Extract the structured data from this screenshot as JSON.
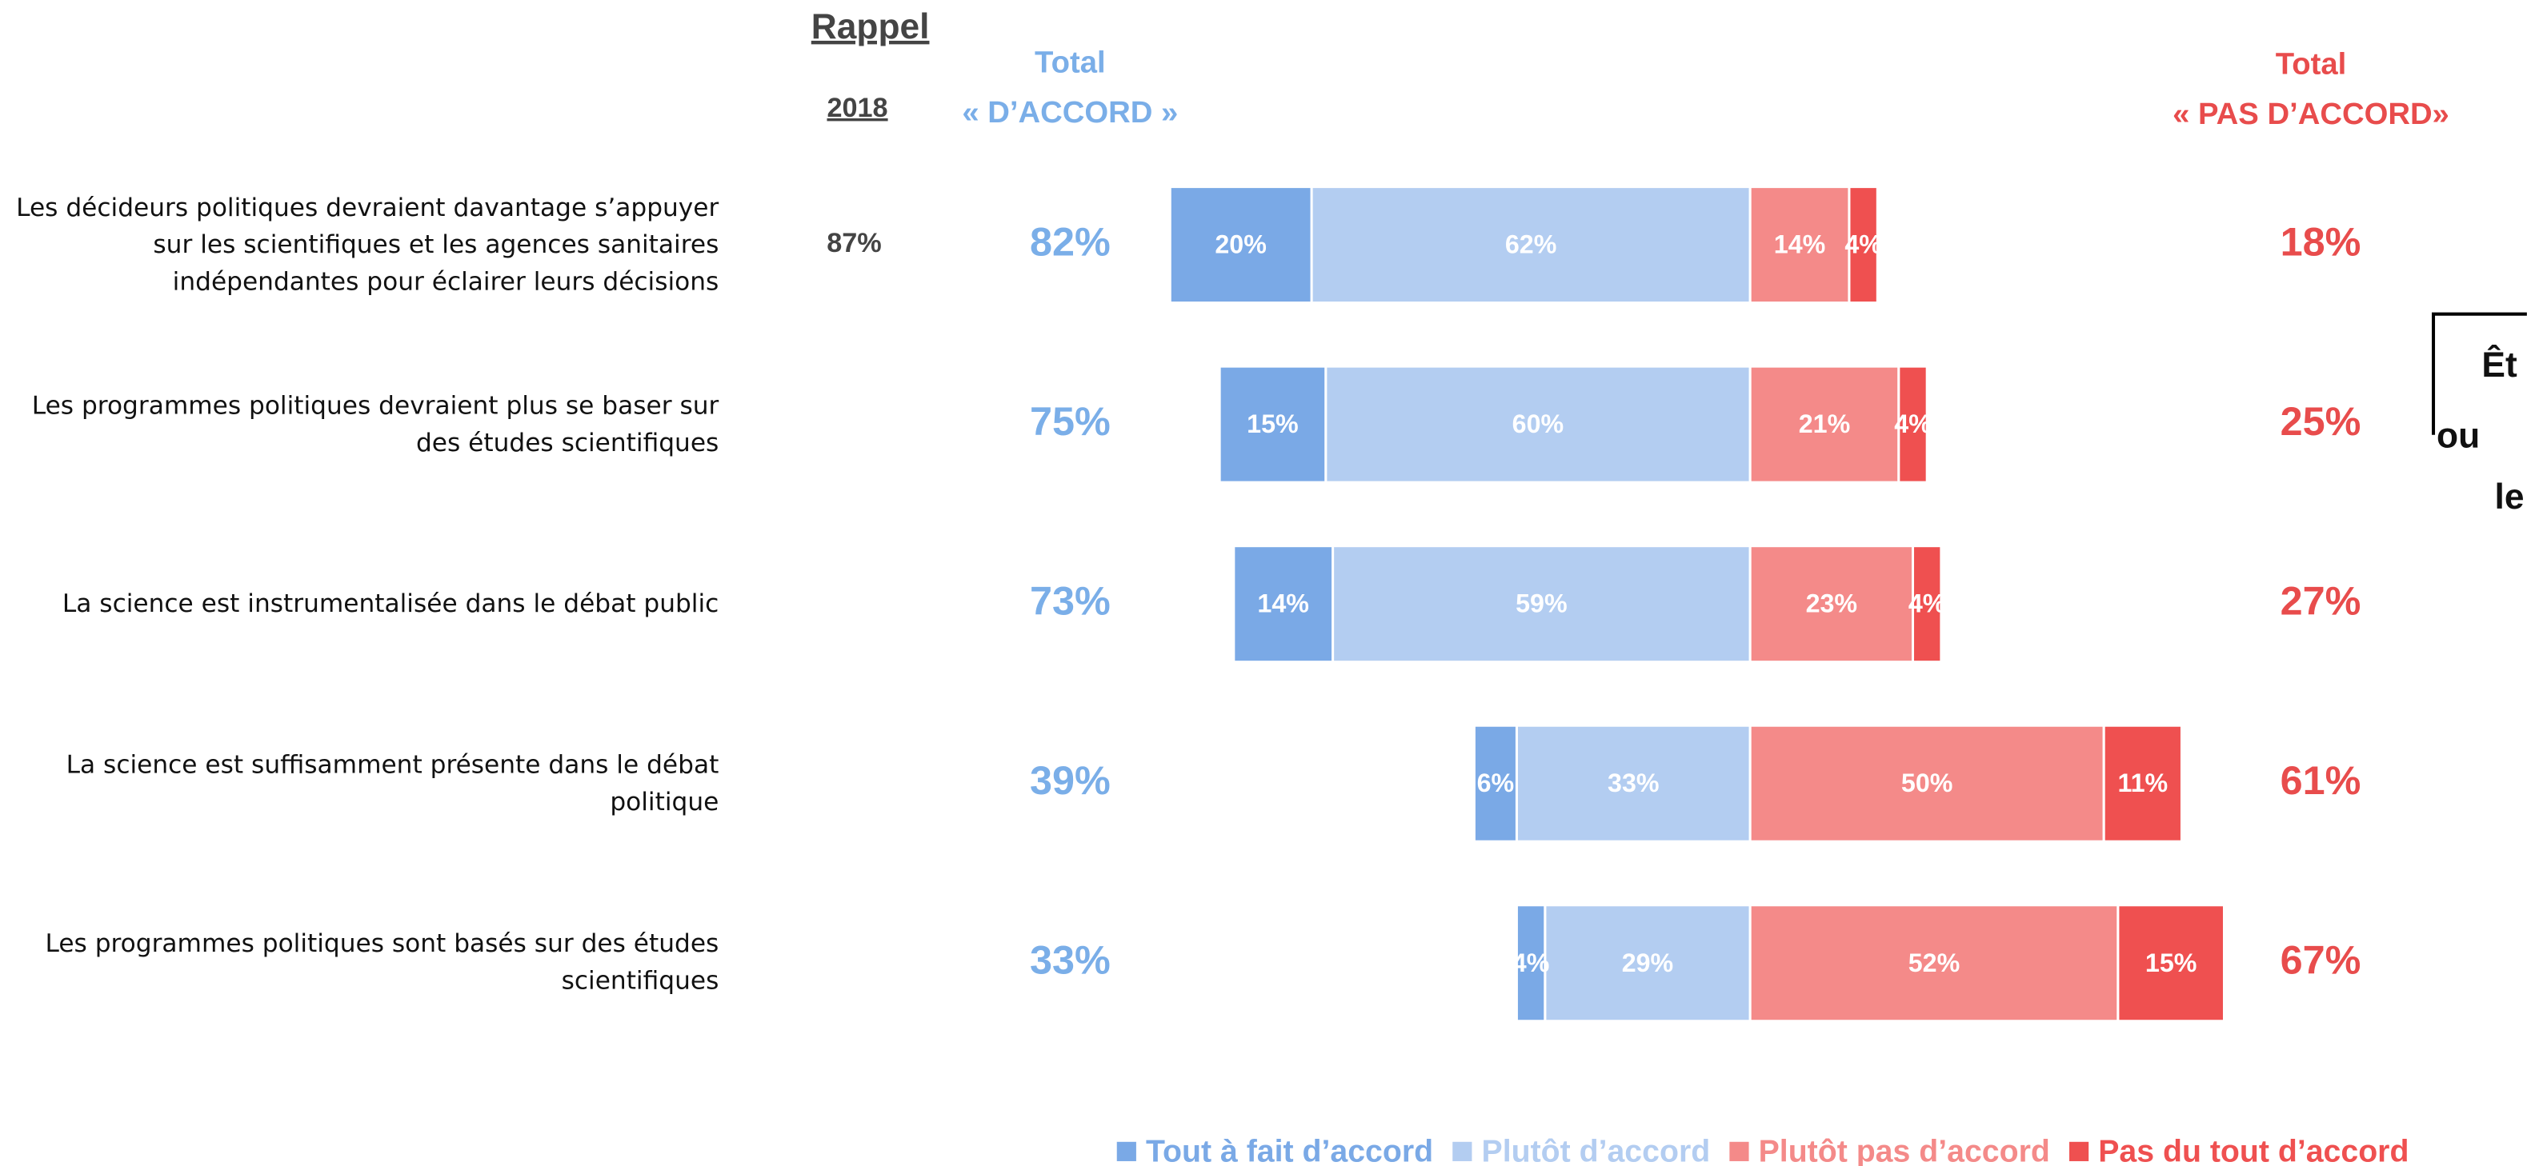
{
  "chart_data": {
    "type": "bar",
    "orientation": "horizontal",
    "diverging": true,
    "categories": [
      "Les décideurs politiques devraient davantage s’appuyer sur les scientifiques et les agences sanitaires indépendantes pour éclairer leurs décisions",
      "Les programmes politiques devraient plus se baser sur des études scientifiques",
      "La science est instrumentalisée dans le débat public",
      "La science est suffisamment présente dans le débat politique",
      "Les programmes politiques sont basés sur des études scientifiques"
    ],
    "series": [
      {
        "name": "Tout à fait d’accord",
        "color": "#7aa9e6",
        "values": [
          20,
          15,
          14,
          6,
          4
        ],
        "value_labels": [
          "20%",
          "15%",
          "14%",
          "6%",
          "4%"
        ]
      },
      {
        "name": "Plutôt d’accord",
        "color": "#b3cdf1",
        "values": [
          62,
          60,
          59,
          33,
          29
        ],
        "value_labels": [
          "62%",
          "60%",
          "59%",
          "33%",
          "29%"
        ]
      },
      {
        "name": "Plutôt pas d’accord",
        "color": "#f48a89",
        "values": [
          14,
          21,
          23,
          50,
          52
        ],
        "value_labels": [
          "14%",
          "21%",
          "23%",
          "50%",
          "52%"
        ]
      },
      {
        "name": "Pas du tout d’accord",
        "color": "#ef5050",
        "values": [
          4,
          4,
          4,
          11,
          15
        ],
        "value_labels": [
          "4%",
          "4%",
          "4%",
          "11%",
          "15%"
        ]
      }
    ],
    "recall": {
      "title": "Rappel",
      "year": "2018",
      "values": [
        87,
        null,
        null,
        null,
        null
      ],
      "value_labels": [
        "87%",
        null,
        null,
        null,
        null
      ]
    },
    "total_agree": {
      "label": [
        "Total",
        "« D’ACCORD »"
      ],
      "color": "#7aaee8",
      "values": [
        82,
        75,
        73,
        39,
        33
      ],
      "value_labels": [
        "82%",
        "75%",
        "73%",
        "39%",
        "33%"
      ]
    },
    "total_disagree": {
      "label": [
        "Total",
        "« PAS D’ACCORD»"
      ],
      "color": "#e84c4c",
      "values": [
        18,
        25,
        27,
        61,
        67
      ],
      "value_labels": [
        "18%",
        "25%",
        "27%",
        "61%",
        "67%"
      ]
    },
    "side_note_lines": [
      "Êt",
      "ou",
      "le"
    ],
    "legend": "bottom"
  }
}
